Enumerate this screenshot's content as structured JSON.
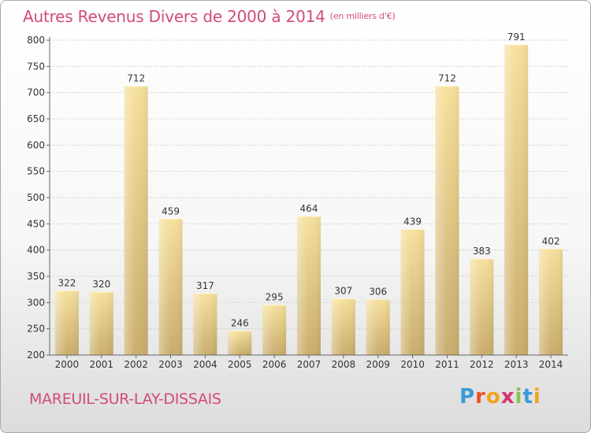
{
  "header": {
    "title": "Autres Revenus Divers de 2000 à 2014",
    "unit": "(en milliers d'€)"
  },
  "footer": {
    "commune": "MAREUIL-SUR-LAY-DISSAIS",
    "logo_letters": [
      "P",
      "r",
      "o",
      "x",
      "i",
      "t",
      "i"
    ],
    "logo_colors": [
      "#3a9ad9",
      "#e8542a",
      "#f2a31b",
      "#d6336c",
      "#8bc34a",
      "#3a9ad9",
      "#f2a31b"
    ]
  },
  "chart_data": {
    "type": "bar",
    "title": "Autres Revenus Divers de 2000 à 2014",
    "categories": [
      "2000",
      "2001",
      "2002",
      "2003",
      "2004",
      "2005",
      "2006",
      "2007",
      "2008",
      "2009",
      "2010",
      "2011",
      "2012",
      "2013",
      "2014"
    ],
    "values": [
      322,
      320,
      712,
      459,
      317,
      246,
      295,
      464,
      307,
      306,
      439,
      712,
      383,
      791,
      402
    ],
    "ylim": [
      200,
      800
    ],
    "yticks": [
      200,
      250,
      300,
      350,
      400,
      450,
      500,
      550,
      600,
      650,
      700,
      750,
      800
    ],
    "grid": true,
    "bar_color": "#e8cc86"
  }
}
